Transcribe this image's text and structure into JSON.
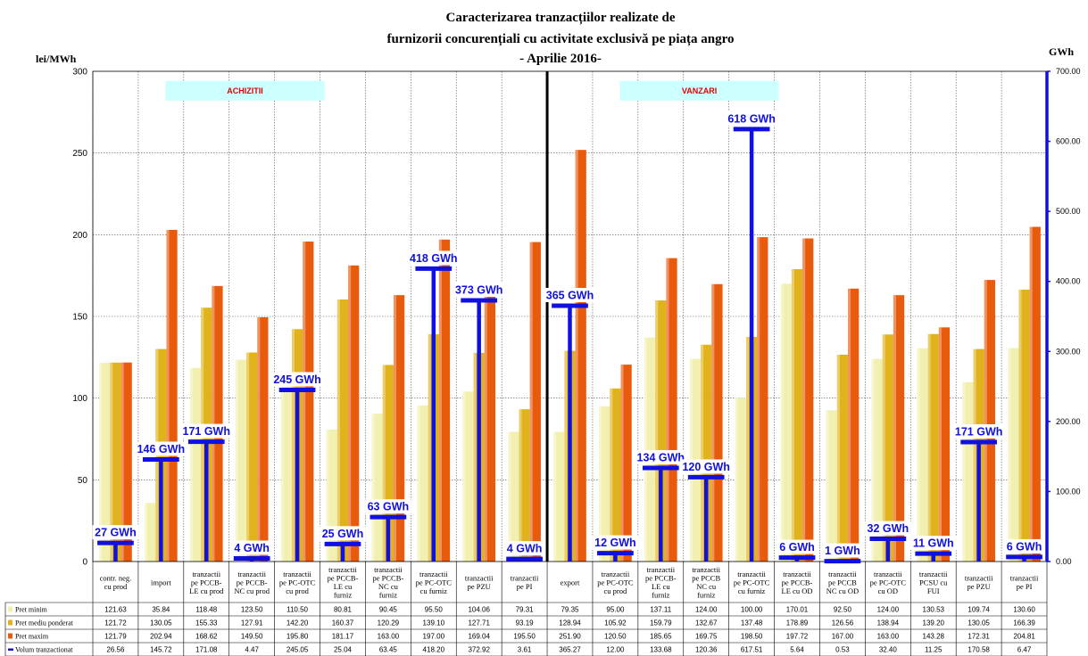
{
  "chart_data": {
    "type": "bar",
    "title": [
      "Caracterizarea tranzacțiilor realizate de",
      "furnizorii concurențiali cu activitate exclusivă pe piața angro",
      "- Aprilie 2016-"
    ],
    "ylabel_left": "lei/MWh",
    "ylabel_right": "GWh",
    "ylim_left": [
      0,
      300
    ],
    "ylim_right": [
      0,
      700
    ],
    "yticks_left": [
      "0",
      "50",
      "100",
      "150",
      "200",
      "250",
      "300"
    ],
    "yticks_right": [
      "0.00",
      "100.00",
      "200.00",
      "300.00",
      "400.00",
      "500.00",
      "600.00",
      "700.00"
    ],
    "sections": [
      {
        "label": "ACHIZITII",
        "from": 0,
        "to": 9
      },
      {
        "label": "VANZARI",
        "from": 10,
        "to": 20
      }
    ],
    "categories": [
      [
        "contr. neg.",
        "cu prod"
      ],
      [
        "import"
      ],
      [
        "tranzactii",
        "pe PCCB-",
        "LE cu prod"
      ],
      [
        "tranzactii",
        "pe PCCB-",
        "NC cu prod"
      ],
      [
        "tranzactii",
        "pe PC-OTC",
        "cu prod"
      ],
      [
        "tranzactii",
        "pe PCCB-",
        "LE cu",
        "furniz"
      ],
      [
        "tranzactii",
        "pe PCCB-",
        "NC cu",
        "furniz"
      ],
      [
        "tranzactii",
        "pe PC-OTC",
        "cu furniz"
      ],
      [
        "tranzactii",
        "pe PZU"
      ],
      [
        "tranzactii",
        "pe PI"
      ],
      [
        "export"
      ],
      [
        "tranzactii",
        "pe PC-OTC",
        "cu prod"
      ],
      [
        "tranzactii",
        "pe PCCB-",
        "LE cu",
        "furniz"
      ],
      [
        "tranzactii",
        "pe PCCB",
        "NC cu",
        "furniz"
      ],
      [
        "tranzactii",
        "pe PC-OTC",
        "cu furniz"
      ],
      [
        "tranzactii",
        "pe PCCB-",
        "LE cu OD"
      ],
      [
        "tranzactii",
        "pe PCCB",
        "NC cu OD"
      ],
      [
        "tranzactii",
        "pe PC-OTC",
        "cu OD"
      ],
      [
        "tranzactii",
        "PCSU cu",
        "FUI"
      ],
      [
        "tranzactii",
        "pe PZU"
      ],
      [
        "tranzactii",
        "pe PI"
      ]
    ],
    "series": [
      {
        "name": "Pret minim",
        "color": "#f2f0b0",
        "axis": "left",
        "values": [
          121.63,
          35.84,
          118.48,
          123.5,
          110.5,
          80.81,
          90.45,
          95.5,
          104.06,
          79.31,
          79.35,
          95.0,
          137.11,
          124.0,
          100.0,
          170.01,
          92.5,
          124.0,
          130.53,
          109.74,
          130.6
        ],
        "labels": [
          "121.63",
          "35.84",
          "118.48",
          "123.50",
          "110.50",
          "80.81",
          "90.45",
          "95.50",
          "104.06",
          "79.31",
          "79.35",
          "95.00",
          "137.11",
          "124.00",
          "100.00",
          "170.01",
          "92.50",
          "124.00",
          "130.53",
          "109.74",
          "130.60"
        ]
      },
      {
        "name": "Pret mediu ponderat",
        "color": "#e0b21c",
        "axis": "left",
        "values": [
          121.72,
          130.05,
          155.33,
          127.91,
          142.2,
          160.37,
          120.29,
          139.1,
          127.71,
          93.19,
          128.94,
          105.92,
          159.79,
          132.67,
          137.48,
          178.89,
          126.56,
          138.94,
          139.2,
          130.05,
          166.39
        ],
        "labels": [
          "121.72",
          "130.05",
          "155.33",
          "127.91",
          "142.20",
          "160.37",
          "120.29",
          "139.10",
          "127.71",
          "93.19",
          "128.94",
          "105.92",
          "159.79",
          "132.67",
          "137.48",
          "178.89",
          "126.56",
          "138.94",
          "139.20",
          "130.05",
          "166.39"
        ]
      },
      {
        "name": "Pret maxim",
        "color": "#e85a0c",
        "axis": "left",
        "values": [
          121.79,
          202.94,
          168.62,
          149.5,
          195.8,
          181.17,
          163.0,
          197.0,
          169.04,
          195.5,
          251.9,
          120.5,
          185.65,
          169.75,
          198.5,
          197.72,
          167.0,
          163.0,
          143.28,
          172.31,
          204.81
        ],
        "labels": [
          "121.79",
          "202.94",
          "168.62",
          "149.50",
          "195.80",
          "181.17",
          "163.00",
          "197.00",
          "169.04",
          "195.50",
          "251.90",
          "120.50",
          "185.65",
          "169.75",
          "198.50",
          "197.72",
          "167.00",
          "163.00",
          "143.28",
          "172.31",
          "204.81"
        ]
      },
      {
        "name": "Volum tranzactionat",
        "color": "#1010e0",
        "axis": "right",
        "values": [
          26.56,
          145.72,
          171.08,
          4.47,
          245.05,
          25.04,
          63.45,
          418.2,
          372.92,
          3.61,
          365.27,
          12.0,
          133.68,
          120.36,
          617.51,
          5.64,
          0.53,
          32.4,
          11.25,
          170.58,
          6.47
        ],
        "labels": [
          "26.56",
          "145.72",
          "171.08",
          "4.47",
          "245.05",
          "25.04",
          "63.45",
          "418.20",
          "372.92",
          "3.61",
          "365.27",
          "12.00",
          "133.68",
          "120.36",
          "617.51",
          "5.64",
          "0.53",
          "32.40",
          "11.25",
          "170.58",
          "6.47"
        ],
        "data_labels": [
          "27 GWh",
          "146 GWh",
          "171 GWh",
          "4 GWh",
          "245 GWh",
          "25 GWh",
          "63 GWh",
          "418 GWh",
          "373 GWh",
          "4 GWh",
          "365 GWh",
          "12 GWh",
          "134 GWh",
          "120 GWh",
          "618 GWh",
          "6 GWh",
          "1 GWh",
          "32 GWh",
          "11 GWh",
          "171 GWh",
          "6 GWh"
        ]
      }
    ],
    "legend": "table-below",
    "grid": true
  }
}
